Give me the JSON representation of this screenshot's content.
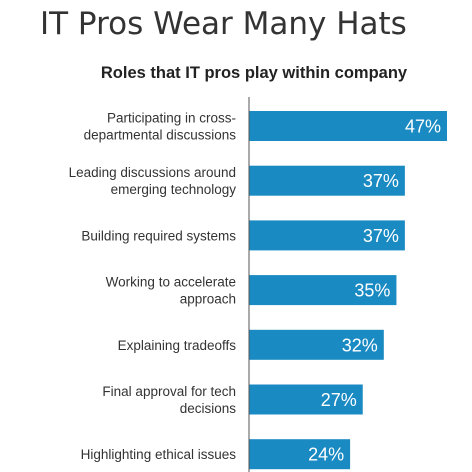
{
  "title": "IT Pros Wear Many Hats",
  "colors": {
    "bar": "#1a8ac3",
    "axis": "#555555",
    "text": "#333333"
  },
  "chart_data": {
    "type": "bar",
    "orientation": "horizontal",
    "title": "Roles that IT pros play within company",
    "categories": [
      [
        "Participating in cross-",
        "departmental discussions"
      ],
      [
        "Leading discussions around",
        "emerging technology"
      ],
      [
        "Building required systems"
      ],
      [
        "Working to accelerate",
        "approach"
      ],
      [
        "Explaining tradeoffs"
      ],
      [
        "Final approval for tech",
        "decisions"
      ],
      [
        "Highlighting ethical issues"
      ]
    ],
    "values": [
      47,
      37,
      37,
      35,
      32,
      27,
      24
    ],
    "value_labels": [
      "47%",
      "37%",
      "37%",
      "35%",
      "32%",
      "27%",
      "24%"
    ],
    "xlim": [
      0,
      47
    ],
    "grid": false,
    "legend": "none"
  }
}
